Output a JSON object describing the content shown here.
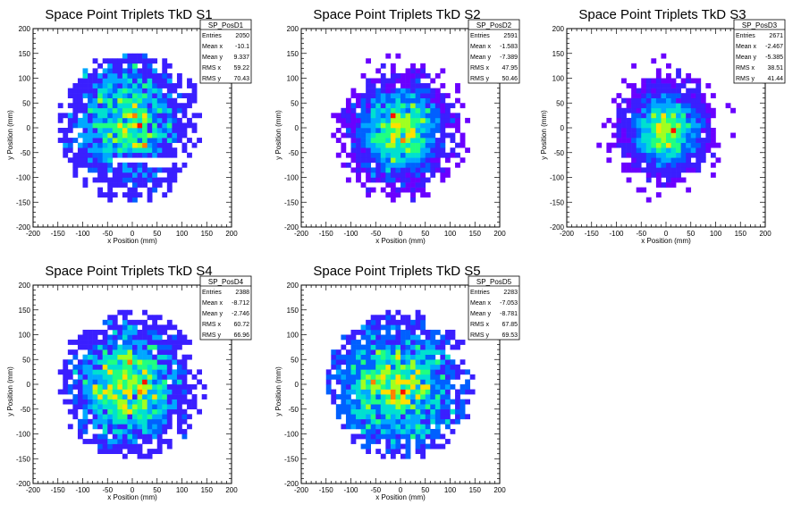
{
  "chart_data": [
    {
      "type": "heatmap",
      "title": "Space Point Triplets TkD S1",
      "xlabel": "x Position (mm)",
      "ylabel": "y Position (mm)",
      "xlim": [
        -200,
        200
      ],
      "ylim": [
        -200,
        200
      ],
      "x_ticks": [
        "-200",
        "-150",
        "-100",
        "-50",
        "0",
        "50",
        "100",
        "150",
        "200"
      ],
      "y_ticks": [
        "-200",
        "-150",
        "-100",
        "-50",
        "0",
        "50",
        "100",
        "150",
        "200"
      ],
      "bin_width": 10,
      "stats": {
        "name": "SP_PosD1",
        "rows": [
          [
            "Entries",
            "2050"
          ],
          [
            "Mean x",
            "-10.1"
          ],
          [
            "Mean y",
            "9.337"
          ],
          [
            "RMS x",
            "59.22"
          ],
          [
            "RMS y",
            "70.43"
          ]
        ]
      },
      "distribution": {
        "center_x": -10.1,
        "center_y": 9.337,
        "rms_x": 59.22,
        "rms_y": 70.43,
        "radius": 150,
        "seed": 11,
        "entries": 2050,
        "gap": true
      }
    },
    {
      "type": "heatmap",
      "title": "Space Point Triplets TkD S2",
      "xlabel": "x Position (mm)",
      "ylabel": "y Position (mm)",
      "xlim": [
        -200,
        200
      ],
      "ylim": [
        -200,
        200
      ],
      "x_ticks": [
        "-200",
        "-150",
        "-100",
        "-50",
        "0",
        "50",
        "100",
        "150",
        "200"
      ],
      "y_ticks": [
        "-200",
        "-150",
        "-100",
        "-50",
        "0",
        "50",
        "100",
        "150",
        "200"
      ],
      "bin_width": 10,
      "stats": {
        "name": "SP_PosD2",
        "rows": [
          [
            "Entries",
            "2591"
          ],
          [
            "Mean x",
            "-1.583"
          ],
          [
            "Mean y",
            "-7.389"
          ],
          [
            "RMS x",
            "47.95"
          ],
          [
            "RMS y",
            "50.46"
          ]
        ]
      },
      "distribution": {
        "center_x": -1.583,
        "center_y": -7.389,
        "rms_x": 47.95,
        "rms_y": 50.46,
        "radius": 150,
        "seed": 23,
        "entries": 2591,
        "gap": false
      }
    },
    {
      "type": "heatmap",
      "title": "Space Point Triplets TkD S3",
      "xlabel": "x Position (mm)",
      "ylabel": "y Position (mm)",
      "xlim": [
        -200,
        200
      ],
      "ylim": [
        -200,
        200
      ],
      "x_ticks": [
        "-200",
        "-150",
        "-100",
        "-50",
        "0",
        "50",
        "100",
        "150",
        "200"
      ],
      "y_ticks": [
        "-200",
        "-150",
        "-100",
        "-50",
        "0",
        "50",
        "100",
        "150",
        "200"
      ],
      "bin_width": 10,
      "stats": {
        "name": "SP_PosD3",
        "rows": [
          [
            "Entries",
            "2671"
          ],
          [
            "Mean x",
            "-2.467"
          ],
          [
            "Mean y",
            "-5.385"
          ],
          [
            "RMS x",
            "38.51"
          ],
          [
            "RMS y",
            "41.44"
          ]
        ]
      },
      "distribution": {
        "center_x": -2.467,
        "center_y": -5.385,
        "rms_x": 38.51,
        "rms_y": 41.44,
        "radius": 150,
        "seed": 37,
        "entries": 2671,
        "gap": false
      }
    },
    {
      "type": "heatmap",
      "title": "Space Point Triplets TkD S4",
      "xlabel": "x Position (mm)",
      "ylabel": "y Position (mm)",
      "xlim": [
        -200,
        200
      ],
      "ylim": [
        -200,
        200
      ],
      "x_ticks": [
        "-200",
        "-150",
        "-100",
        "-50",
        "0",
        "50",
        "100",
        "150",
        "200"
      ],
      "y_ticks": [
        "-200",
        "-150",
        "-100",
        "-50",
        "0",
        "50",
        "100",
        "150",
        "200"
      ],
      "bin_width": 10,
      "stats": {
        "name": "SP_PosD4",
        "rows": [
          [
            "Entries",
            "2388"
          ],
          [
            "Mean x",
            "-8.712"
          ],
          [
            "Mean y",
            "-2.746"
          ],
          [
            "RMS x",
            "60.72"
          ],
          [
            "RMS y",
            "66.96"
          ]
        ]
      },
      "distribution": {
        "center_x": -8.712,
        "center_y": -2.746,
        "rms_x": 60.72,
        "rms_y": 66.96,
        "radius": 150,
        "seed": 41,
        "entries": 2388,
        "gap": false
      }
    },
    {
      "type": "heatmap",
      "title": "Space Point Triplets TkD S5",
      "xlabel": "x Position (mm)",
      "ylabel": "y Position (mm)",
      "xlim": [
        -200,
        200
      ],
      "ylim": [
        -200,
        200
      ],
      "x_ticks": [
        "-200",
        "-150",
        "-100",
        "-50",
        "0",
        "50",
        "100",
        "150",
        "200"
      ],
      "y_ticks": [
        "-200",
        "-150",
        "-100",
        "-50",
        "0",
        "50",
        "100",
        "150",
        "200"
      ],
      "bin_width": 10,
      "stats": {
        "name": "SP_PosD5",
        "rows": [
          [
            "Entries",
            "2283"
          ],
          [
            "Mean x",
            "-7.053"
          ],
          [
            "Mean y",
            "-8.781"
          ],
          [
            "RMS x",
            "67.85"
          ],
          [
            "RMS y",
            "69.53"
          ]
        ]
      },
      "distribution": {
        "center_x": -7.053,
        "center_y": -8.781,
        "rms_x": 67.85,
        "rms_y": 69.53,
        "radius": 150,
        "seed": 53,
        "entries": 2283,
        "gap": false
      }
    }
  ],
  "colors": {
    "palette": [
      "#6a00ff",
      "#3a1fff",
      "#0060ff",
      "#00a8ff",
      "#00e0d0",
      "#20ff80",
      "#a0ff20",
      "#ffe000",
      "#ff8000",
      "#ff1000"
    ],
    "frame": "#000000",
    "background": "#ffffff"
  }
}
